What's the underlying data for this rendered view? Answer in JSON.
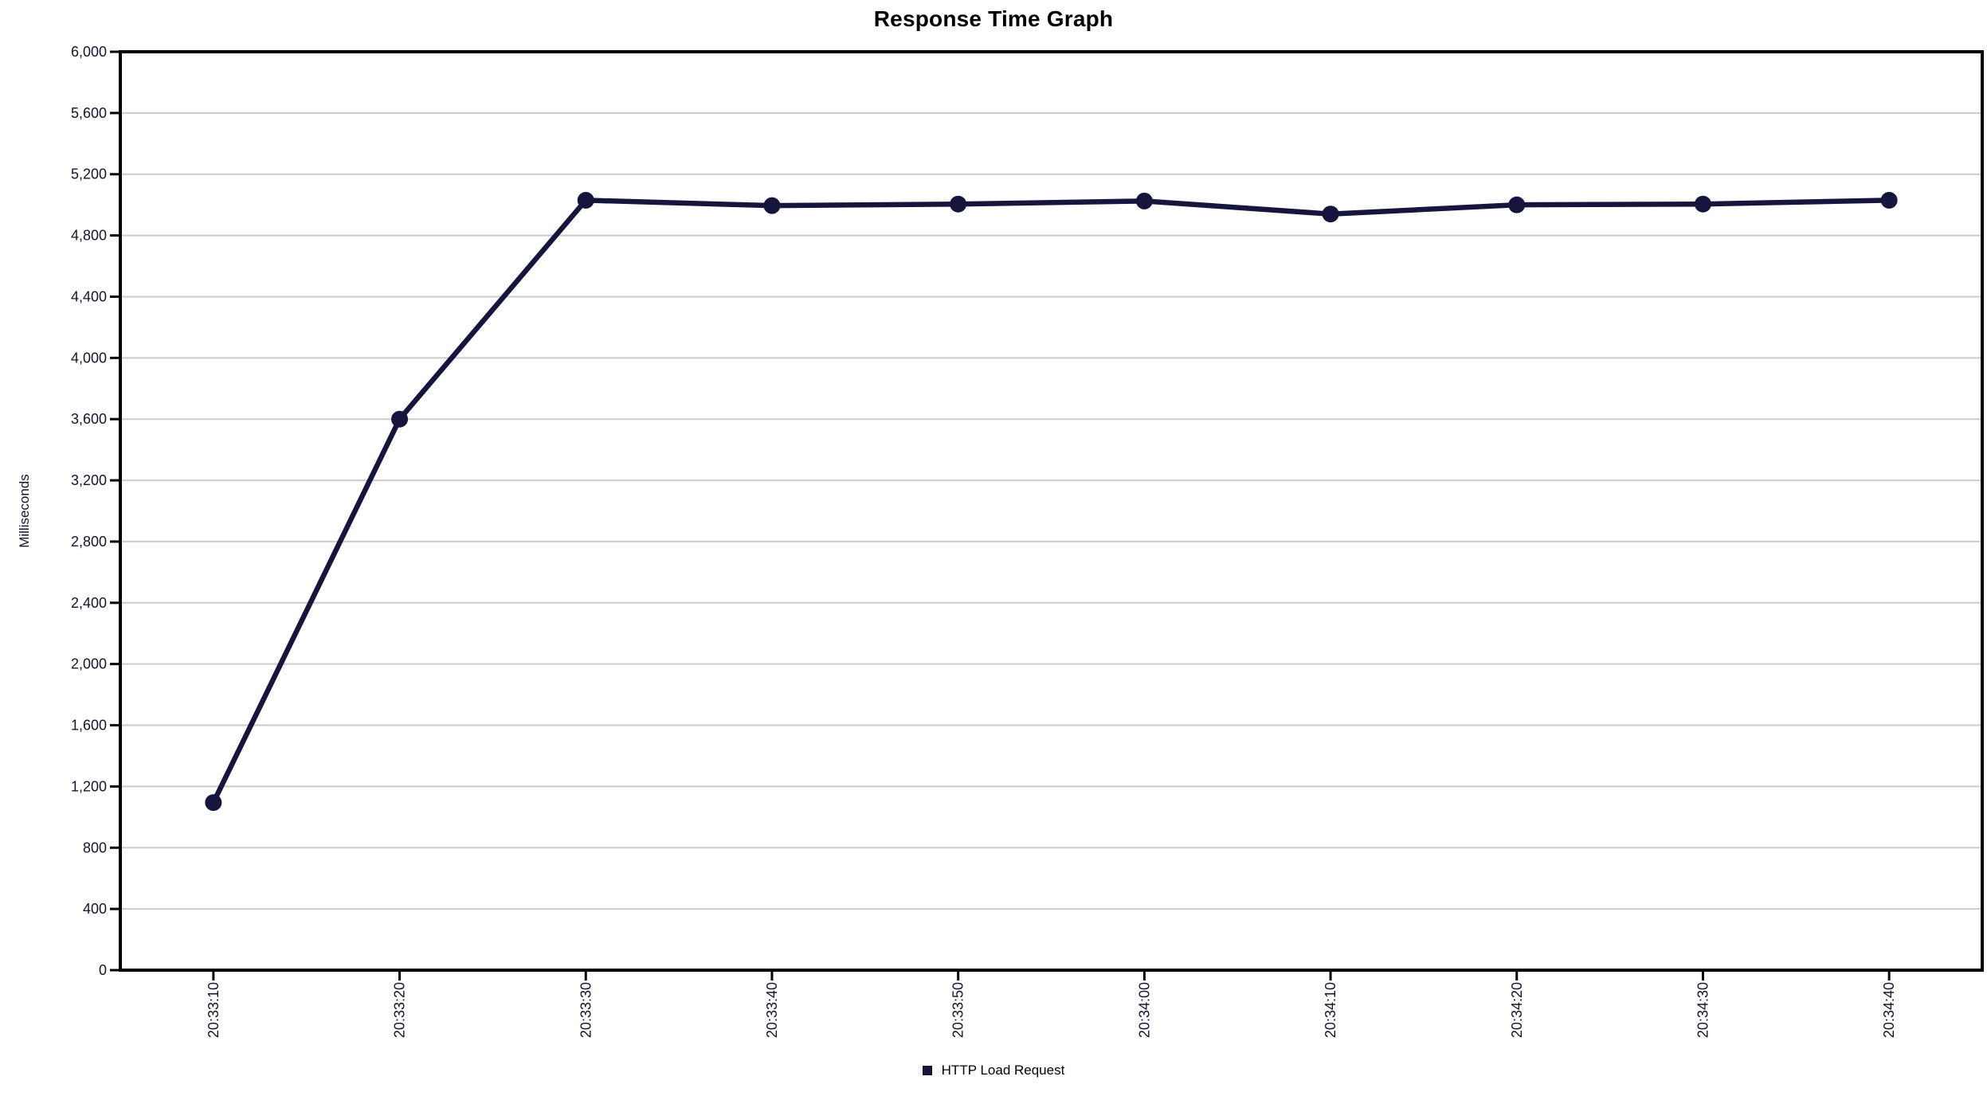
{
  "chart_data": {
    "type": "line",
    "title": "Response Time Graph",
    "ylabel": "Milliseconds",
    "xlabel": "",
    "categories": [
      "20:33:10",
      "20:33:20",
      "20:33:30",
      "20:33:40",
      "20:33:50",
      "20:34:00",
      "20:34:10",
      "20:34:20",
      "20:34:30",
      "20:34:40"
    ],
    "series": [
      {
        "name": "HTTP Load Request",
        "values": [
          1095,
          3600,
          5030,
          4995,
          5005,
          5025,
          4940,
          5000,
          5005,
          5030
        ]
      }
    ],
    "ylim": [
      0,
      6000
    ],
    "ytick_step": 400,
    "ytick_labels": [
      "0",
      "400",
      "800",
      "1,200",
      "1,600",
      "2,000",
      "2,400",
      "2,800",
      "3,200",
      "3,600",
      "4,000",
      "4,400",
      "4,800",
      "5,200",
      "5,600",
      "6,000"
    ],
    "grid": "horizontal-only",
    "legend_position": "bottom-center",
    "x_label_rotation": -90,
    "colors": {
      "series": "#15153d",
      "gridline": "#cbcbcb",
      "plot_border": "#000000",
      "tick": "#000000",
      "axis_text": "#14142e",
      "background": "#ffffff"
    }
  },
  "legend": {
    "marker": "square",
    "label": "HTTP Load Request"
  }
}
